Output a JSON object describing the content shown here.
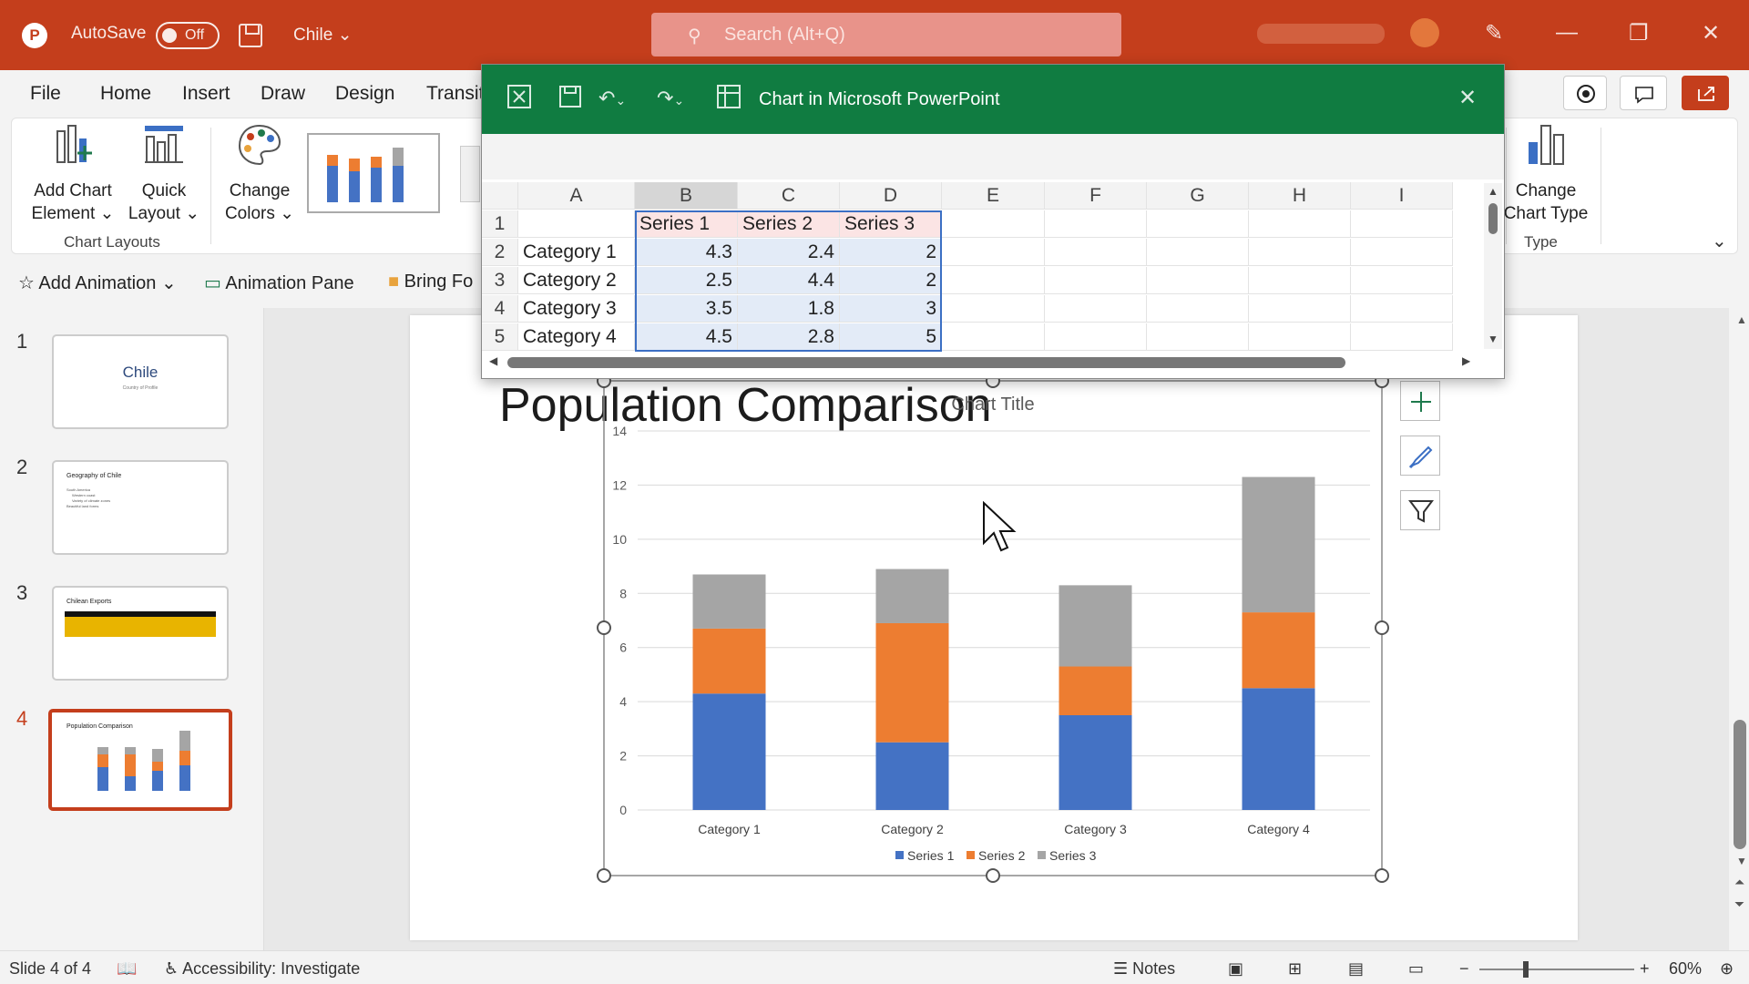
{
  "titlebar": {
    "app_logo": "P",
    "autosave_label": "AutoSave",
    "autosave_state": "Off",
    "file_name": "Chile",
    "search_placeholder": "Search (Alt+Q)",
    "accent": "#c43e1c"
  },
  "menu": {
    "tabs": [
      "File",
      "Home",
      "Insert",
      "Draw",
      "Design",
      "Transit"
    ]
  },
  "ribbon": {
    "add_chart_element": [
      "Add Chart",
      "Element"
    ],
    "quick_layout": [
      "Quick",
      "Layout"
    ],
    "change_colors": [
      "Change",
      "Colors"
    ],
    "change_chart_type": [
      "Change",
      "Chart Type"
    ],
    "group_chart_layouts": "Chart Layouts",
    "group_type": "Type"
  },
  "animbar": {
    "add_animation": "Add Animation",
    "animation_pane": "Animation Pane",
    "bring_forward": "Bring Fo"
  },
  "slides": [
    {
      "number": "1",
      "title": "Chile",
      "subtitle": "Country of Profile"
    },
    {
      "number": "2",
      "title": "Geography of Chile",
      "bullets": [
        "South America",
        "Western coast",
        "Variety of climate zones",
        "Beautiful land forms"
      ]
    },
    {
      "number": "3",
      "title": "Chilean Exports"
    },
    {
      "number": "4",
      "title": "Population Comparison"
    }
  ],
  "slide": {
    "title": "Population Comparison"
  },
  "excel": {
    "window_title": "Chart in Microsoft PowerPoint",
    "columns": [
      "A",
      "B",
      "C",
      "D",
      "E",
      "F",
      "G",
      "H",
      "I"
    ],
    "rows": [
      "1",
      "2",
      "3",
      "4",
      "5"
    ],
    "series_headers": [
      "Series 1",
      "Series 2",
      "Series 3"
    ],
    "table": [
      [
        "Category 1",
        "4.3",
        "2.4",
        "2"
      ],
      [
        "Category 2",
        "2.5",
        "4.4",
        "2"
      ],
      [
        "Category 3",
        "3.5",
        "1.8",
        "3"
      ],
      [
        "Category 4",
        "4.5",
        "2.8",
        "5"
      ]
    ]
  },
  "chart_data": {
    "type": "bar",
    "stacked": true,
    "title": "Chart Title",
    "categories": [
      "Category 1",
      "Category 2",
      "Category 3",
      "Category 4"
    ],
    "series": [
      {
        "name": "Series 1",
        "values": [
          4.3,
          2.5,
          3.5,
          4.5
        ],
        "color": "#4472c4"
      },
      {
        "name": "Series 2",
        "values": [
          2.4,
          4.4,
          1.8,
          2.8
        ],
        "color": "#ed7d31"
      },
      {
        "name": "Series 3",
        "values": [
          2,
          2,
          3,
          5
        ],
        "color": "#a5a5a5"
      }
    ],
    "y_ticks": [
      "0",
      "2",
      "4",
      "6",
      "8",
      "10",
      "12",
      "14"
    ],
    "ylim": [
      0,
      14
    ],
    "grid": true,
    "legend_position": "bottom"
  },
  "statusbar": {
    "slide_indicator": "Slide 4 of 4",
    "accessibility": "Accessibility: Investigate",
    "notes": "Notes",
    "zoom": "60%"
  }
}
